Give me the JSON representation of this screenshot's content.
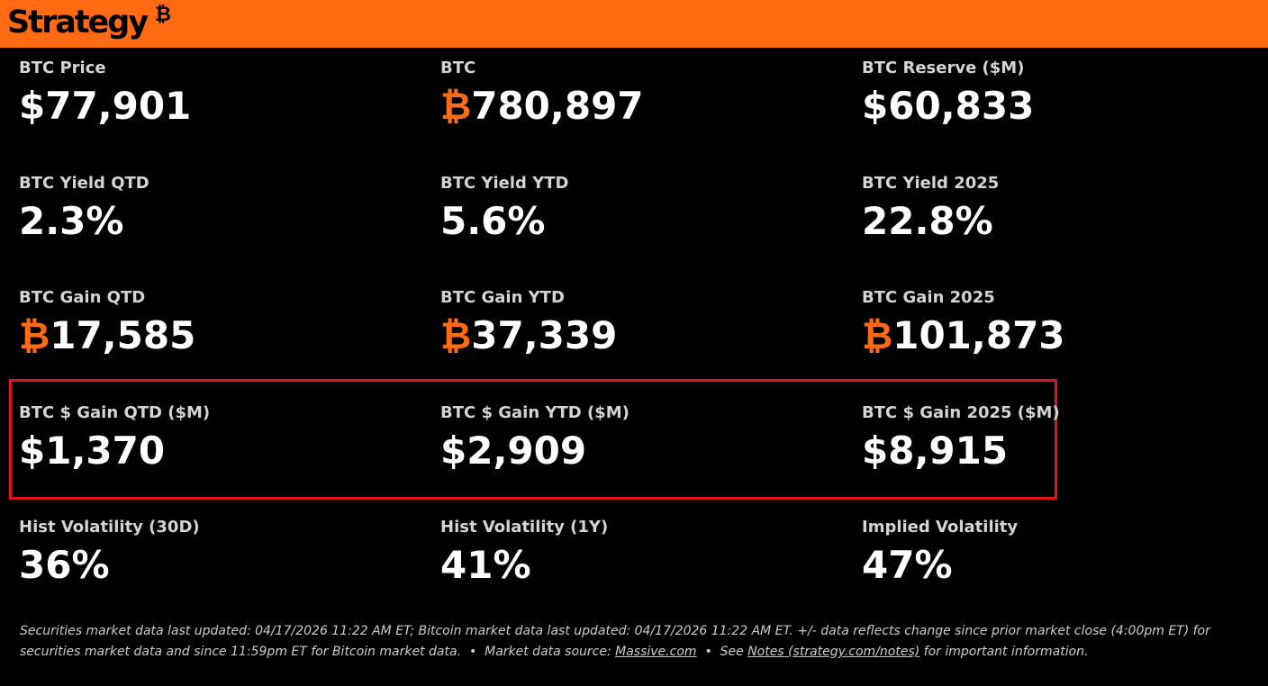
{
  "header": {
    "logo_text": "Strategy",
    "logo_glyph": "₿"
  },
  "metrics": {
    "row1": [
      {
        "label": "BTC Price",
        "prefix": "",
        "value": "$77,901"
      },
      {
        "label": "BTC",
        "prefix": "₿",
        "value": "780,897"
      },
      {
        "label": "BTC Reserve ($M)",
        "prefix": "",
        "value": "$60,833"
      }
    ],
    "row2": [
      {
        "label": "BTC Yield QTD",
        "prefix": "",
        "value": "2.3%"
      },
      {
        "label": "BTC Yield YTD",
        "prefix": "",
        "value": "5.6%"
      },
      {
        "label": "BTC Yield 2025",
        "prefix": "",
        "value": "22.8%"
      }
    ],
    "row3": [
      {
        "label": "BTC Gain QTD",
        "prefix": "₿",
        "value": "17,585"
      },
      {
        "label": "BTC Gain YTD",
        "prefix": "₿",
        "value": "37,339"
      },
      {
        "label": "BTC Gain 2025",
        "prefix": "₿",
        "value": "101,873"
      }
    ],
    "row4": [
      {
        "label": "BTC $ Gain QTD ($M)",
        "prefix": "",
        "value": "$1,370"
      },
      {
        "label": "BTC $ Gain YTD ($M)",
        "prefix": "",
        "value": "$2,909"
      },
      {
        "label": "BTC $ Gain 2025 ($M)",
        "prefix": "",
        "value": "$8,915"
      }
    ],
    "row5": [
      {
        "label": "Hist Volatility (30D)",
        "prefix": "",
        "value": "36%"
      },
      {
        "label": "Hist Volatility (1Y)",
        "prefix": "",
        "value": "41%"
      },
      {
        "label": "Implied Volatility",
        "prefix": "",
        "value": "47%"
      }
    ]
  },
  "footer": {
    "text_1": "Securities market data last updated: 04/17/2026 11:22 AM ET; Bitcoin market data last updated: 04/17/2026 11:22 AM ET. +/- data reflects change since prior market close (4:00pm ET) for securities market data and since 11:59pm ET for Bitcoin market data.",
    "sep_1": "•",
    "source_prefix": "Market data source:",
    "source_link": "Massive.com",
    "sep_2": "•",
    "see_prefix": "See",
    "notes_link": "Notes (strategy.com/notes)",
    "see_suffix": "for important information."
  },
  "colors": {
    "brand_orange": "#ff6a13",
    "highlight_red": "#e0141c",
    "background": "#000000"
  }
}
